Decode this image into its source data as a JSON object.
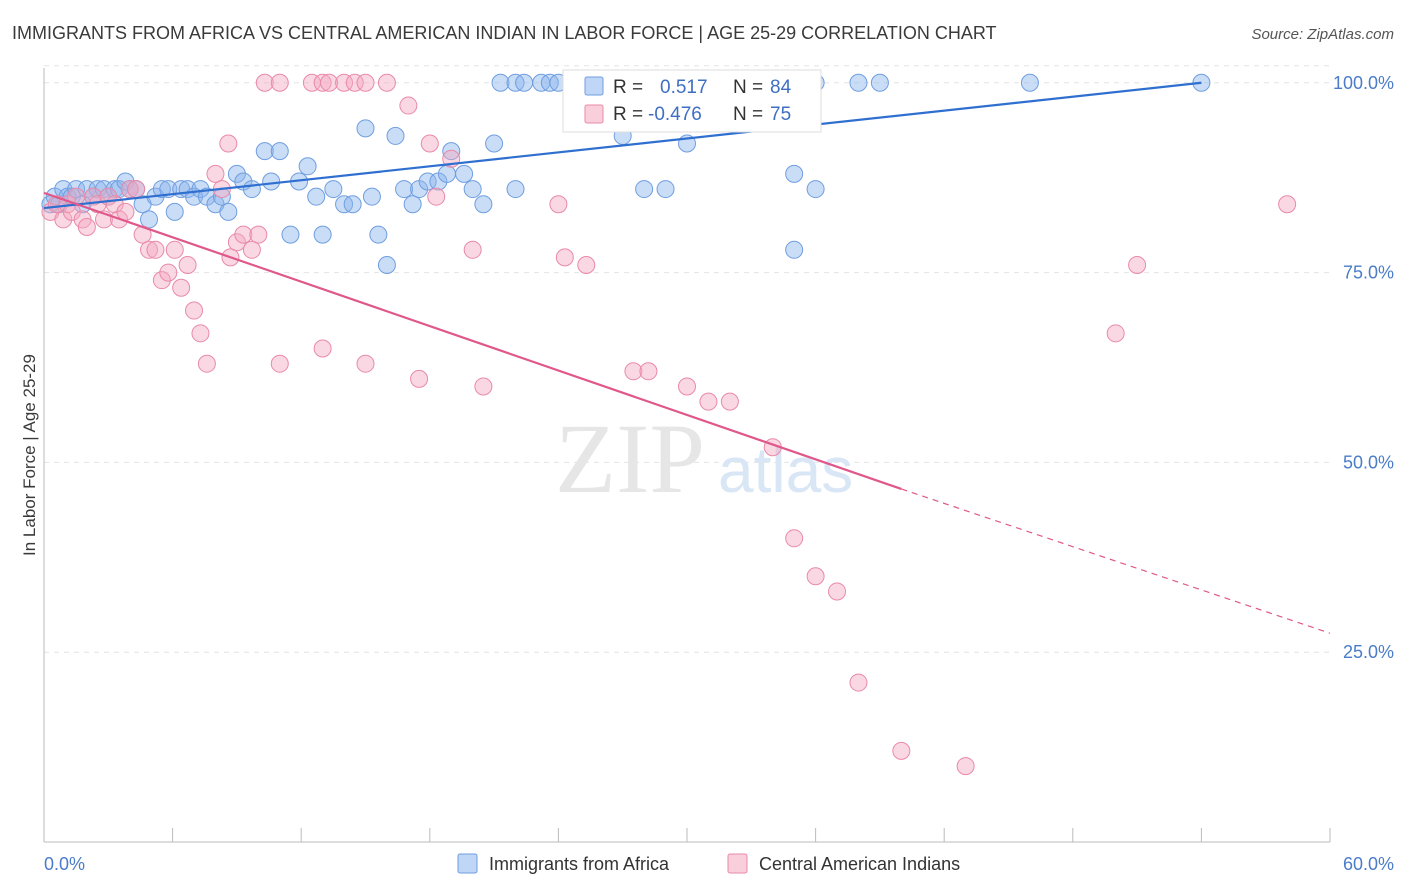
{
  "chart_data": {
    "type": "scatter",
    "title": "IMMIGRANTS FROM AFRICA VS CENTRAL AMERICAN INDIAN IN LABOR FORCE | AGE 25-29 CORRELATION CHART",
    "source": "Source: ZipAtlas.com",
    "ylabel": "In Labor Force | Age 25-29",
    "xlim": [
      0,
      60
    ],
    "ylim": [
      0,
      103
    ],
    "x_tick_labels": [
      "0.0%",
      "60.0%"
    ],
    "y_ticks": [
      25,
      50,
      75,
      100
    ],
    "y_tick_labels": [
      "25.0%",
      "50.0%",
      "75.0%",
      "100.0%"
    ],
    "grid": "horizontal dashed",
    "legend_position": "bottom",
    "watermark": {
      "text1": "ZIP",
      "text2": "atlas"
    },
    "series": [
      {
        "name": "Immigrants from Africa",
        "color": "#8ab4ee",
        "stroke": "#6f9ee0",
        "line_color": "#2f6fd0",
        "R": "0.517",
        "N": "84",
        "trend": {
          "x0": 0,
          "y0": 83.5,
          "x1": 54,
          "y1": 100,
          "dashed_to": null
        },
        "points": [
          [
            0.3,
            84
          ],
          [
            0.5,
            85
          ],
          [
            0.7,
            84
          ],
          [
            0.9,
            86
          ],
          [
            1.1,
            85
          ],
          [
            1.3,
            85
          ],
          [
            1.5,
            86
          ],
          [
            1.8,
            84
          ],
          [
            2.0,
            86
          ],
          [
            2.3,
            85
          ],
          [
            2.5,
            86
          ],
          [
            2.8,
            86
          ],
          [
            3.0,
            85
          ],
          [
            3.3,
            86
          ],
          [
            3.5,
            86
          ],
          [
            3.8,
            87
          ],
          [
            4.0,
            86
          ],
          [
            4.3,
            86
          ],
          [
            4.6,
            84
          ],
          [
            4.9,
            82
          ],
          [
            5.2,
            85
          ],
          [
            5.5,
            86
          ],
          [
            5.8,
            86
          ],
          [
            6.1,
            83
          ],
          [
            6.4,
            86
          ],
          [
            6.7,
            86
          ],
          [
            7.0,
            85
          ],
          [
            7.3,
            86
          ],
          [
            7.6,
            85
          ],
          [
            8.0,
            84
          ],
          [
            8.3,
            85
          ],
          [
            8.6,
            83
          ],
          [
            9.0,
            88
          ],
          [
            9.3,
            87
          ],
          [
            9.7,
            86
          ],
          [
            10.3,
            91
          ],
          [
            10.6,
            87
          ],
          [
            11.0,
            91
          ],
          [
            11.5,
            80
          ],
          [
            11.9,
            87
          ],
          [
            12.3,
            89
          ],
          [
            12.7,
            85
          ],
          [
            13.0,
            80
          ],
          [
            13.5,
            86
          ],
          [
            14.0,
            84
          ],
          [
            14.4,
            84
          ],
          [
            15.0,
            94
          ],
          [
            15.3,
            85
          ],
          [
            15.6,
            80
          ],
          [
            16.0,
            76
          ],
          [
            16.4,
            93
          ],
          [
            16.8,
            86
          ],
          [
            17.2,
            84
          ],
          [
            17.5,
            86
          ],
          [
            17.9,
            87
          ],
          [
            18.4,
            87
          ],
          [
            18.8,
            88
          ],
          [
            19.0,
            91
          ],
          [
            19.6,
            88
          ],
          [
            20.0,
            86
          ],
          [
            20.5,
            84
          ],
          [
            21.0,
            92
          ],
          [
            21.3,
            100
          ],
          [
            22.0,
            100
          ],
          [
            22.4,
            100
          ],
          [
            23.2,
            100
          ],
          [
            23.6,
            100
          ],
          [
            24.0,
            100
          ],
          [
            26.0,
            100
          ],
          [
            27.3,
            100
          ],
          [
            28.0,
            100
          ],
          [
            30.0,
            92
          ],
          [
            35.0,
            88
          ],
          [
            36.0,
            100
          ],
          [
            38.0,
            100
          ],
          [
            39.0,
            100
          ],
          [
            46.0,
            100
          ],
          [
            54.0,
            100
          ],
          [
            28.0,
            86
          ],
          [
            27.0,
            93
          ],
          [
            22.0,
            86
          ],
          [
            29.0,
            86
          ],
          [
            35.0,
            78
          ],
          [
            36.0,
            86
          ]
        ]
      },
      {
        "name": "Central American Indians",
        "color": "#f4a8c0",
        "stroke": "#e98aa8",
        "line_color": "#e0588a",
        "R": "-0.476",
        "N": "75",
        "trend": {
          "x0": 0,
          "y0": 85.5,
          "x1": 40,
          "y1": 46.5,
          "dashed_to": {
            "x": 60,
            "y": 27.5
          }
        },
        "points": [
          [
            0.3,
            83
          ],
          [
            0.6,
            84
          ],
          [
            0.9,
            82
          ],
          [
            1.1,
            84
          ],
          [
            1.3,
            83
          ],
          [
            1.5,
            85
          ],
          [
            1.8,
            82
          ],
          [
            2.0,
            81
          ],
          [
            2.3,
            85
          ],
          [
            2.5,
            84
          ],
          [
            2.8,
            82
          ],
          [
            3.0,
            85
          ],
          [
            3.3,
            84
          ],
          [
            3.5,
            82
          ],
          [
            3.8,
            83
          ],
          [
            4.0,
            86
          ],
          [
            4.3,
            86
          ],
          [
            4.6,
            80
          ],
          [
            4.9,
            78
          ],
          [
            5.2,
            78
          ],
          [
            5.5,
            74
          ],
          [
            5.8,
            75
          ],
          [
            6.1,
            78
          ],
          [
            6.4,
            73
          ],
          [
            6.7,
            76
          ],
          [
            7.0,
            70
          ],
          [
            7.3,
            67
          ],
          [
            7.6,
            63
          ],
          [
            8.0,
            88
          ],
          [
            8.3,
            86
          ],
          [
            8.6,
            92
          ],
          [
            9.0,
            79
          ],
          [
            9.3,
            80
          ],
          [
            9.7,
            78
          ],
          [
            10.0,
            80
          ],
          [
            10.3,
            100
          ],
          [
            11.0,
            100
          ],
          [
            12.5,
            100
          ],
          [
            13.0,
            100
          ],
          [
            13.3,
            100
          ],
          [
            14.0,
            100
          ],
          [
            14.5,
            100
          ],
          [
            15.0,
            100
          ],
          [
            16.0,
            100
          ],
          [
            17.0,
            97
          ],
          [
            18.0,
            92
          ],
          [
            19.0,
            90
          ],
          [
            13.0,
            65
          ],
          [
            11.0,
            63
          ],
          [
            8.7,
            77
          ],
          [
            15.0,
            63
          ],
          [
            17.5,
            61
          ],
          [
            18.3,
            85
          ],
          [
            20.0,
            78
          ],
          [
            20.5,
            60
          ],
          [
            24.0,
            84
          ],
          [
            24.3,
            77
          ],
          [
            24.7,
            100
          ],
          [
            25.0,
            100
          ],
          [
            25.3,
            76
          ],
          [
            27.5,
            62
          ],
          [
            28.2,
            62
          ],
          [
            30.0,
            60
          ],
          [
            31.0,
            58
          ],
          [
            32.0,
            58
          ],
          [
            34.0,
            52
          ],
          [
            35.0,
            40
          ],
          [
            36.0,
            35
          ],
          [
            37.0,
            33
          ],
          [
            38.0,
            21
          ],
          [
            40.0,
            12
          ],
          [
            43.0,
            10
          ],
          [
            50.0,
            67
          ],
          [
            51.0,
            76
          ],
          [
            58.0,
            84
          ]
        ]
      }
    ]
  }
}
